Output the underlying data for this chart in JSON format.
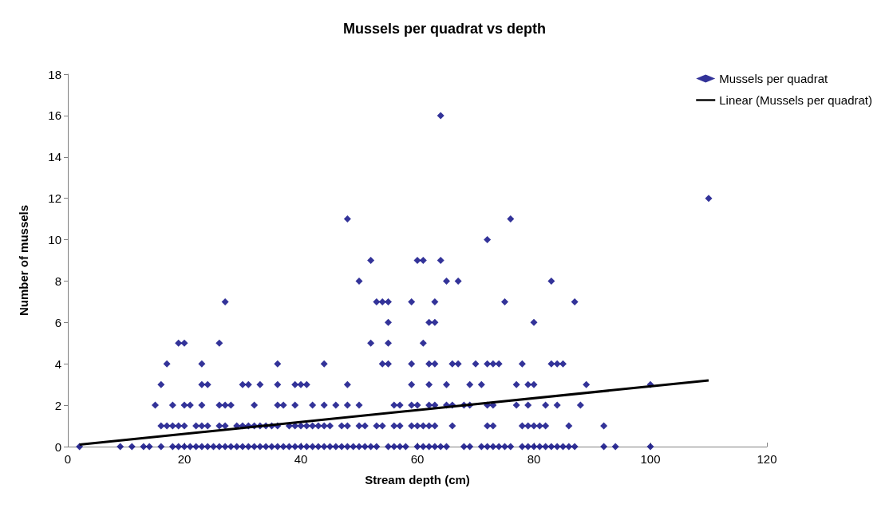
{
  "chart_data": {
    "type": "scatter",
    "title": "Mussels per quadrat vs depth",
    "xlabel": "Stream depth (cm)",
    "ylabel": "Number of mussels",
    "xlim": [
      0,
      120
    ],
    "xticks": [
      0,
      20,
      40,
      60,
      80,
      100,
      120
    ],
    "ylim": [
      0,
      18
    ],
    "yticks": [
      0,
      2,
      4,
      6,
      8,
      10,
      12,
      14,
      16,
      18
    ],
    "grid": false,
    "legend": "top right",
    "series": [
      {
        "name": "Mussels per quadrat",
        "marker": "diamond",
        "color": "#000080",
        "x": [
          2,
          9,
          11,
          13,
          14,
          16,
          18,
          19,
          20,
          21,
          22,
          23,
          24,
          25,
          26,
          27,
          28,
          29,
          30,
          31,
          32,
          33,
          34,
          35,
          36,
          37,
          38,
          39,
          40,
          41,
          42,
          43,
          44,
          45,
          46,
          47,
          48,
          49,
          50,
          51,
          52,
          53,
          55,
          56,
          57,
          58,
          60,
          61,
          62,
          63,
          64,
          65,
          68,
          69,
          71,
          72,
          73,
          74,
          75,
          76,
          78,
          79,
          80,
          81,
          82,
          83,
          84,
          85,
          86,
          87,
          92,
          94,
          100,
          16,
          17,
          18,
          19,
          20,
          22,
          23,
          24,
          26,
          27,
          29,
          30,
          31,
          32,
          33,
          34,
          35,
          36,
          38,
          39,
          40,
          41,
          42,
          43,
          44,
          45,
          47,
          48,
          50,
          51,
          53,
          54,
          56,
          57,
          59,
          60,
          61,
          62,
          63,
          66,
          72,
          73,
          78,
          79,
          80,
          81,
          82,
          86,
          92,
          15,
          18,
          20,
          21,
          23,
          26,
          27,
          28,
          32,
          36,
          37,
          39,
          42,
          44,
          46,
          48,
          50,
          56,
          57,
          59,
          60,
          62,
          63,
          65,
          66,
          68,
          69,
          72,
          73,
          77,
          79,
          82,
          84,
          88,
          16,
          23,
          24,
          30,
          31,
          33,
          36,
          39,
          40,
          41,
          48,
          59,
          62,
          65,
          69,
          71,
          77,
          79,
          80,
          89,
          100,
          17,
          23,
          36,
          44,
          54,
          55,
          59,
          62,
          63,
          66,
          67,
          70,
          72,
          73,
          74,
          78,
          83,
          84,
          85,
          19,
          20,
          26,
          52,
          55,
          61,
          55,
          62,
          63,
          80,
          27,
          53,
          54,
          55,
          59,
          63,
          75,
          87,
          50,
          65,
          67,
          83,
          52,
          60,
          61,
          64,
          72,
          48,
          76,
          110,
          64
        ],
        "values": [
          0,
          0,
          0,
          0,
          0,
          0,
          0,
          0,
          0,
          0,
          0,
          0,
          0,
          0,
          0,
          0,
          0,
          0,
          0,
          0,
          0,
          0,
          0,
          0,
          0,
          0,
          0,
          0,
          0,
          0,
          0,
          0,
          0,
          0,
          0,
          0,
          0,
          0,
          0,
          0,
          0,
          0,
          0,
          0,
          0,
          0,
          0,
          0,
          0,
          0,
          0,
          0,
          0,
          0,
          0,
          0,
          0,
          0,
          0,
          0,
          0,
          0,
          0,
          0,
          0,
          0,
          0,
          0,
          0,
          0,
          0,
          0,
          0,
          1,
          1,
          1,
          1,
          1,
          1,
          1,
          1,
          1,
          1,
          1,
          1,
          1,
          1,
          1,
          1,
          1,
          1,
          1,
          1,
          1,
          1,
          1,
          1,
          1,
          1,
          1,
          1,
          1,
          1,
          1,
          1,
          1,
          1,
          1,
          1,
          1,
          1,
          1,
          1,
          1,
          1,
          1,
          1,
          1,
          1,
          1,
          1,
          1,
          2,
          2,
          2,
          2,
          2,
          2,
          2,
          2,
          2,
          2,
          2,
          2,
          2,
          2,
          2,
          2,
          2,
          2,
          2,
          2,
          2,
          2,
          2,
          2,
          2,
          2,
          2,
          2,
          2,
          2,
          2,
          2,
          2,
          2,
          3,
          3,
          3,
          3,
          3,
          3,
          3,
          3,
          3,
          3,
          3,
          3,
          3,
          3,
          3,
          3,
          3,
          3,
          3,
          3,
          3,
          4,
          4,
          4,
          4,
          4,
          4,
          4,
          4,
          4,
          4,
          4,
          4,
          4,
          4,
          4,
          4,
          4,
          4,
          4,
          5,
          5,
          5,
          5,
          5,
          5,
          6,
          6,
          6,
          6,
          7,
          7,
          7,
          7,
          7,
          7,
          7,
          7,
          8,
          8,
          8,
          8,
          9,
          9,
          9,
          9,
          10,
          11,
          11,
          12,
          16
        ]
      },
      {
        "name": "Linear (Mussels per quadrat)",
        "type": "line",
        "marker": "none",
        "color": "#000000",
        "x": [
          2,
          110
        ],
        "values": [
          0.1,
          3.2
        ]
      }
    ]
  }
}
